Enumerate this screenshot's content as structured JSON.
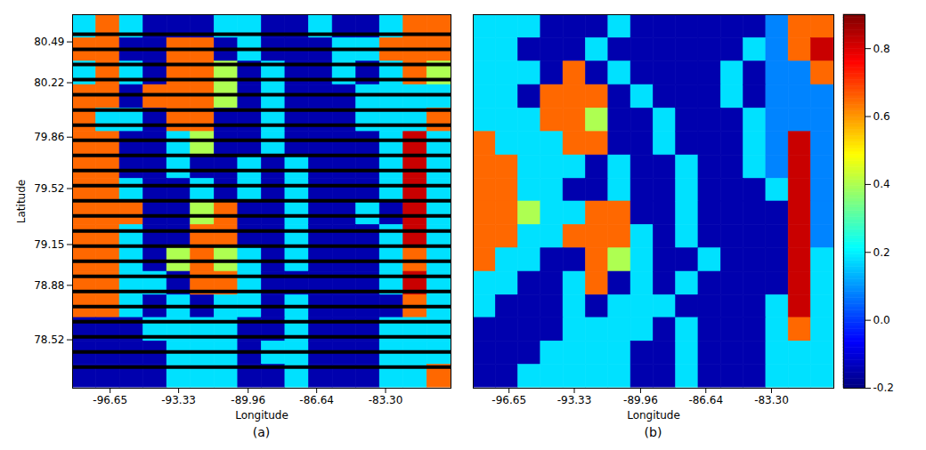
{
  "chart_data": [
    {
      "type": "heatmap",
      "caption": "(a)",
      "xlabel": "Longitude",
      "ylabel": "Latitude",
      "xlim": [
        -98.47,
        -80.13
      ],
      "ylim": [
        78.2,
        80.67
      ],
      "xticks": [
        -96.65,
        -93.33,
        -89.96,
        -86.64,
        {
          "value": -83.3,
          "label": "-83.30"
        }
      ],
      "yticks": [
        80.49,
        80.22,
        79.86,
        79.52,
        79.15,
        78.88,
        78.52
      ],
      "x": [
        -97.9,
        -96.75,
        -95.61,
        -94.46,
        -93.32,
        -92.17,
        -91.02,
        -89.88,
        -88.73,
        -87.59,
        -86.44,
        -85.29,
        -84.15,
        -83.0,
        -81.86,
        -80.71
      ],
      "y": [
        80.59,
        80.44,
        80.28,
        80.13,
        79.97,
        79.82,
        79.66,
        79.51,
        79.36,
        79.2,
        79.05,
        78.89,
        78.74,
        78.59,
        78.43,
        78.28
      ],
      "z": [
        [
          0.18,
          0.65,
          0.18,
          -0.15,
          -0.15,
          -0.15,
          0.18,
          0.18,
          -0.15,
          -0.15,
          0.18,
          -0.15,
          -0.15,
          0.18,
          0.65,
          0.65
        ],
        [
          0.65,
          0.65,
          -0.15,
          -0.15,
          0.65,
          0.65,
          -0.15,
          0.18,
          -0.15,
          -0.15,
          -0.15,
          0.18,
          0.18,
          0.65,
          0.65,
          0.65
        ],
        [
          0.18,
          0.65,
          0.18,
          -0.15,
          0.65,
          0.65,
          0.4,
          -0.15,
          0.18,
          -0.15,
          -0.15,
          0.18,
          -0.15,
          0.18,
          0.65,
          0.4
        ],
        [
          0.65,
          0.65,
          -0.15,
          0.65,
          0.65,
          0.65,
          0.4,
          -0.15,
          0.18,
          -0.15,
          -0.15,
          -0.15,
          0.18,
          0.18,
          0.18,
          0.18
        ],
        [
          0.65,
          0.18,
          0.18,
          -0.15,
          0.65,
          0.65,
          -0.15,
          -0.15,
          0.18,
          -0.15,
          -0.15,
          -0.15,
          0.18,
          0.18,
          0.18,
          0.65
        ],
        [
          0.65,
          0.65,
          -0.15,
          -0.15,
          0.18,
          0.4,
          -0.15,
          -0.15,
          0.18,
          -0.15,
          -0.15,
          -0.15,
          -0.15,
          0.18,
          0.82,
          0.18
        ],
        [
          0.65,
          0.65,
          -0.15,
          -0.15,
          0.18,
          -0.15,
          -0.15,
          0.18,
          -0.15,
          0.18,
          -0.15,
          -0.15,
          -0.15,
          0.18,
          0.82,
          0.18
        ],
        [
          0.65,
          0.65,
          0.18,
          -0.15,
          -0.15,
          0.18,
          -0.15,
          0.18,
          -0.15,
          0.18,
          -0.15,
          -0.15,
          -0.15,
          0.18,
          0.82,
          0.18
        ],
        [
          0.65,
          0.65,
          0.65,
          -0.15,
          -0.15,
          0.4,
          0.65,
          -0.15,
          -0.15,
          0.18,
          -0.15,
          -0.15,
          0.18,
          -0.15,
          0.82,
          0.18
        ],
        [
          0.65,
          0.65,
          0.18,
          -0.15,
          -0.15,
          0.65,
          0.65,
          -0.15,
          -0.15,
          0.18,
          -0.15,
          -0.15,
          -0.15,
          0.18,
          0.82,
          0.18
        ],
        [
          0.65,
          0.65,
          0.18,
          -0.15,
          0.4,
          0.65,
          0.4,
          0.18,
          -0.15,
          0.18,
          -0.15,
          -0.15,
          -0.15,
          0.18,
          0.65,
          0.18
        ],
        [
          0.65,
          0.65,
          0.18,
          0.18,
          -0.15,
          0.65,
          0.65,
          0.18,
          -0.15,
          -0.15,
          -0.15,
          -0.15,
          -0.15,
          0.18,
          0.82,
          0.18
        ],
        [
          0.65,
          0.65,
          0.18,
          -0.15,
          0.18,
          -0.15,
          0.18,
          0.18,
          -0.15,
          0.18,
          -0.15,
          -0.15,
          -0.15,
          -0.15,
          0.65,
          0.18
        ],
        [
          -0.15,
          -0.15,
          -0.15,
          0.18,
          0.18,
          0.18,
          0.18,
          -0.15,
          -0.15,
          0.18,
          -0.15,
          -0.15,
          -0.15,
          0.18,
          0.18,
          0.18
        ],
        [
          -0.15,
          -0.15,
          -0.15,
          -0.15,
          0.18,
          0.18,
          0.18,
          -0.15,
          0.18,
          0.18,
          -0.15,
          -0.15,
          -0.15,
          0.18,
          0.18,
          0.18
        ],
        [
          -0.15,
          -0.15,
          -0.15,
          -0.15,
          0.18,
          0.18,
          0.18,
          -0.15,
          -0.15,
          0.18,
          -0.15,
          -0.15,
          -0.15,
          0.18,
          0.18,
          0.65
        ]
      ],
      "no_data_lines": [
        80.54,
        80.44,
        80.34,
        80.24,
        80.14,
        80.04,
        79.94,
        79.84,
        79.74,
        79.64,
        79.54,
        79.44,
        79.34,
        79.24,
        79.14,
        79.04,
        78.94,
        78.84,
        78.74,
        78.64,
        78.54,
        78.44,
        78.34
      ]
    },
    {
      "type": "heatmap",
      "caption": "(b)",
      "xlabel": "Longitude",
      "tick_labels": "x",
      "xlim": [
        -98.47,
        -80.13
      ],
      "ylim": [
        78.2,
        80.67
      ],
      "xticks": [
        -96.65,
        -93.33,
        -89.96,
        -86.64,
        {
          "value": -83.3,
          "label": "-83.30"
        }
      ],
      "x": [
        -97.9,
        -96.75,
        -95.61,
        -94.46,
        -93.32,
        -92.17,
        -91.02,
        -89.88,
        -88.73,
        -87.59,
        -86.44,
        -85.29,
        -84.15,
        -83.0,
        -81.86,
        -80.71
      ],
      "y": [
        80.59,
        80.44,
        80.28,
        80.13,
        79.97,
        79.82,
        79.66,
        79.51,
        79.36,
        79.2,
        79.05,
        78.89,
        78.74,
        78.59,
        78.43,
        78.28
      ],
      "z": [
        [
          0.18,
          0.18,
          0.18,
          -0.15,
          -0.15,
          -0.15,
          0.18,
          -0.15,
          -0.15,
          -0.15,
          -0.15,
          -0.15,
          -0.15,
          0.08,
          0.65,
          0.65
        ],
        [
          0.18,
          0.18,
          -0.15,
          -0.15,
          -0.15,
          0.18,
          -0.15,
          -0.15,
          -0.15,
          -0.15,
          -0.15,
          -0.15,
          0.18,
          0.08,
          0.65,
          0.82
        ],
        [
          0.18,
          0.18,
          0.18,
          -0.15,
          0.65,
          -0.15,
          0.18,
          -0.15,
          -0.15,
          -0.15,
          -0.15,
          0.18,
          -0.15,
          0.08,
          0.08,
          0.65
        ],
        [
          0.18,
          0.18,
          -0.15,
          0.65,
          0.65,
          0.65,
          -0.15,
          0.18,
          -0.15,
          -0.15,
          -0.15,
          0.18,
          -0.15,
          0.08,
          0.08,
          0.08
        ],
        [
          0.18,
          0.18,
          0.18,
          0.65,
          0.65,
          0.4,
          -0.15,
          -0.15,
          0.18,
          -0.15,
          -0.15,
          -0.15,
          0.18,
          0.08,
          0.08,
          0.08
        ],
        [
          0.65,
          0.18,
          0.18,
          0.18,
          0.65,
          0.65,
          -0.15,
          -0.15,
          0.18,
          -0.15,
          -0.15,
          -0.15,
          0.18,
          0.08,
          0.82,
          0.08
        ],
        [
          0.65,
          0.65,
          0.18,
          0.18,
          0.18,
          -0.15,
          0.18,
          -0.15,
          -0.15,
          0.18,
          -0.15,
          -0.15,
          0.18,
          0.08,
          0.82,
          0.08
        ],
        [
          0.65,
          0.65,
          0.18,
          0.18,
          -0.15,
          -0.15,
          0.18,
          -0.15,
          -0.15,
          0.18,
          -0.15,
          -0.15,
          -0.15,
          0.18,
          0.82,
          0.08
        ],
        [
          0.65,
          0.65,
          0.4,
          0.18,
          0.18,
          0.65,
          0.65,
          -0.15,
          -0.15,
          0.18,
          -0.15,
          -0.15,
          -0.15,
          -0.15,
          0.82,
          0.08
        ],
        [
          0.65,
          0.65,
          0.18,
          0.18,
          0.65,
          0.65,
          0.65,
          0.18,
          -0.15,
          0.18,
          -0.15,
          -0.15,
          -0.15,
          -0.15,
          0.82,
          0.08
        ],
        [
          0.65,
          0.18,
          0.18,
          -0.15,
          -0.15,
          0.65,
          0.4,
          0.18,
          -0.15,
          -0.15,
          0.18,
          -0.15,
          -0.15,
          -0.15,
          0.82,
          0.18
        ],
        [
          0.18,
          0.18,
          -0.15,
          -0.15,
          0.18,
          0.65,
          -0.15,
          0.18,
          -0.15,
          0.18,
          -0.15,
          -0.15,
          -0.15,
          -0.15,
          0.82,
          0.18
        ],
        [
          0.18,
          -0.15,
          -0.15,
          -0.15,
          0.18,
          -0.15,
          0.18,
          0.18,
          0.18,
          -0.15,
          -0.15,
          -0.15,
          -0.15,
          0.18,
          0.82,
          0.18
        ],
        [
          -0.15,
          -0.15,
          -0.15,
          -0.15,
          0.18,
          0.18,
          0.18,
          0.18,
          -0.15,
          0.18,
          -0.15,
          -0.15,
          -0.15,
          0.18,
          0.65,
          0.18
        ],
        [
          -0.15,
          -0.15,
          -0.15,
          0.18,
          0.18,
          0.18,
          0.18,
          -0.15,
          -0.15,
          0.18,
          -0.15,
          -0.15,
          -0.15,
          0.18,
          0.18,
          0.18
        ],
        [
          -0.15,
          -0.15,
          0.18,
          0.18,
          0.18,
          0.18,
          0.18,
          -0.15,
          -0.15,
          0.18,
          -0.15,
          -0.15,
          -0.15,
          0.18,
          0.18,
          0.18
        ]
      ],
      "colorbar": {
        "range": [
          -0.2,
          0.9
        ],
        "ticks": [
          -0.2,
          {
            "value": 0,
            "label": "0.0"
          },
          0.2,
          0.4,
          0.6,
          0.8
        ]
      }
    }
  ]
}
